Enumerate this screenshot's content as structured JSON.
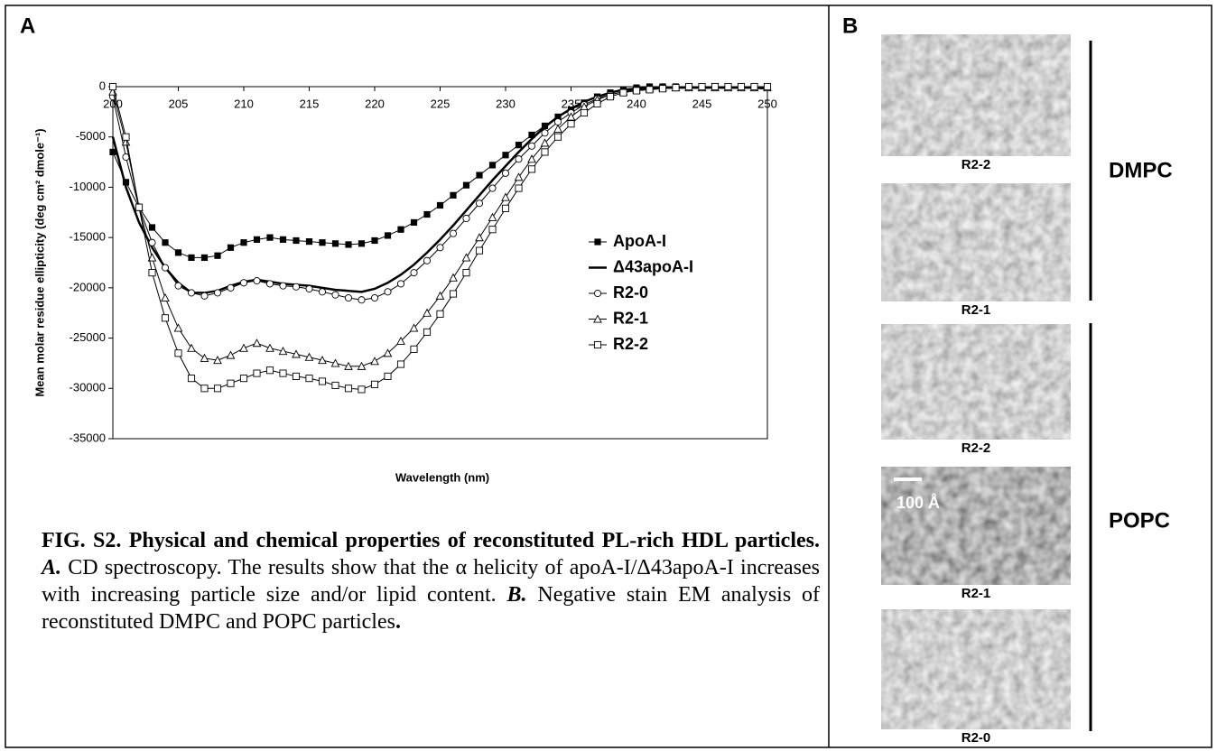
{
  "panel_labels": [
    "A",
    "B"
  ],
  "chart_data": {
    "type": "line",
    "ylabel": "Mean molar residue ellipticity (deg cm² dmole⁻¹)",
    "xlabel": "Wavelength (nm)",
    "xlim": [
      200,
      250
    ],
    "xticks": [
      200,
      205,
      210,
      215,
      220,
      225,
      230,
      235,
      240,
      245,
      250
    ],
    "ylim": [
      -35000,
      0
    ],
    "yticks": [
      0,
      -5000,
      -10000,
      -15000,
      -20000,
      -25000,
      -30000,
      -35000
    ],
    "grid": false,
    "legend": "right",
    "x": [
      200,
      201,
      202,
      203,
      204,
      205,
      206,
      207,
      208,
      209,
      210,
      211,
      212,
      213,
      214,
      215,
      216,
      217,
      218,
      219,
      220,
      221,
      222,
      223,
      224,
      225,
      226,
      227,
      228,
      229,
      230,
      231,
      232,
      233,
      234,
      235,
      236,
      237,
      238,
      239,
      240,
      241,
      242,
      243,
      244,
      245,
      246,
      247,
      248,
      249,
      250
    ],
    "series": [
      {
        "name": "ApoA-I",
        "color": "#000000",
        "marker": "square-filled",
        "values": [
          -6500,
          -9500,
          -12000,
          -14000,
          -15500,
          -16500,
          -17000,
          -17000,
          -16800,
          -16000,
          -15500,
          -15200,
          -15000,
          -15200,
          -15300,
          -15400,
          -15500,
          -15600,
          -15700,
          -15600,
          -15300,
          -14800,
          -14200,
          -13500,
          -12700,
          -11800,
          -10800,
          -9800,
          -8800,
          -7800,
          -6800,
          -5800,
          -4800,
          -3900,
          -3000,
          -2300,
          -1600,
          -1000,
          -600,
          -300,
          -100,
          0,
          0,
          0,
          0,
          0,
          -100,
          0,
          0,
          0,
          -100
        ]
      },
      {
        "name": "Δ43apoA-I",
        "color": "#000000",
        "marker": "none",
        "values": [
          -5000,
          -10000,
          -13500,
          -16000,
          -18000,
          -19500,
          -20500,
          -20500,
          -20300,
          -19800,
          -19400,
          -19200,
          -19400,
          -19600,
          -19700,
          -19800,
          -20000,
          -20200,
          -20300,
          -20400,
          -20100,
          -19500,
          -18700,
          -17700,
          -16500,
          -15200,
          -13800,
          -12300,
          -10800,
          -9300,
          -7900,
          -6500,
          -5200,
          -4000,
          -3000,
          -2200,
          -1500,
          -1000,
          -600,
          -300,
          -200,
          -100,
          -100,
          -100,
          -100,
          -100,
          -100,
          -100,
          -100,
          -100,
          -200
        ]
      },
      {
        "name": "R2-0",
        "color": "#000000",
        "marker": "circle",
        "values": [
          -1000,
          -7000,
          -12000,
          -15500,
          -18000,
          -19800,
          -20500,
          -20800,
          -20500,
          -20000,
          -19500,
          -19300,
          -19600,
          -19800,
          -19900,
          -20100,
          -20400,
          -20700,
          -21000,
          -21200,
          -21000,
          -20400,
          -19600,
          -18500,
          -17300,
          -16000,
          -14600,
          -13100,
          -11600,
          -10100,
          -8600,
          -7200,
          -5900,
          -4600,
          -3500,
          -2600,
          -1800,
          -1200,
          -800,
          -500,
          -300,
          -200,
          -100,
          -100,
          -100,
          -100,
          -100,
          -100,
          -100,
          -100,
          -100
        ]
      },
      {
        "name": "R2-1",
        "color": "#000000",
        "marker": "triangle",
        "values": [
          -500,
          -5500,
          -12000,
          -17000,
          -21000,
          -24000,
          -26000,
          -27000,
          -27200,
          -26700,
          -26000,
          -25500,
          -26000,
          -26300,
          -26600,
          -26900,
          -27200,
          -27500,
          -27800,
          -27800,
          -27300,
          -26500,
          -25300,
          -24000,
          -22500,
          -20800,
          -19000,
          -17000,
          -15000,
          -13000,
          -11000,
          -9000,
          -7200,
          -5600,
          -4200,
          -3000,
          -2000,
          -1300,
          -800,
          -500,
          -300,
          -200,
          -100,
          -100,
          -100,
          -100,
          -100,
          -100,
          -100,
          -100,
          -100
        ]
      },
      {
        "name": "R2-2",
        "color": "#000000",
        "marker": "square",
        "values": [
          0,
          -5000,
          -12000,
          -18500,
          -23000,
          -26500,
          -29000,
          -30000,
          -30000,
          -29500,
          -29000,
          -28500,
          -28200,
          -28500,
          -28800,
          -29000,
          -29300,
          -29700,
          -30000,
          -30100,
          -29600,
          -28800,
          -27600,
          -26100,
          -24400,
          -22600,
          -20600,
          -18500,
          -16300,
          -14200,
          -12100,
          -10100,
          -8200,
          -6500,
          -5000,
          -3700,
          -2600,
          -1700,
          -1000,
          -600,
          -400,
          -300,
          -200,
          -100,
          0,
          0,
          0,
          0,
          0,
          0,
          0
        ]
      }
    ]
  },
  "caption": [
    "FIG. S2. Physical and chemical properties of reconstituted PL-rich HDL particles.",
    "A.",
    "CD spectroscopy. The results show that the α helicity of apoA-I/Δ43apoA-I increases with increasing particle size and/or lipid content.",
    "B.",
    "Negative stain EM analysis of reconstituted DMPC and POPC particles",
    "."
  ],
  "em_panel": {
    "images": [
      "R2-2",
      "R2-1",
      "R2-2",
      "R2-1",
      "R2-0"
    ],
    "groups": [
      "DMPC",
      "POPC"
    ],
    "scale_bar": "100 Å"
  }
}
